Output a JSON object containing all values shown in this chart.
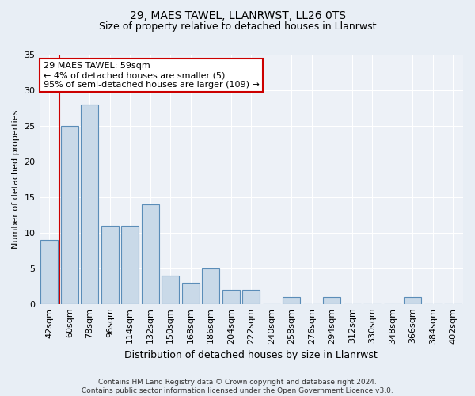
{
  "title1": "29, MAES TAWEL, LLANRWST, LL26 0TS",
  "title2": "Size of property relative to detached houses in Llanrwst",
  "xlabel": "Distribution of detached houses by size in Llanrwst",
  "ylabel": "Number of detached properties",
  "categories": [
    "42sqm",
    "60sqm",
    "78sqm",
    "96sqm",
    "114sqm",
    "132sqm",
    "150sqm",
    "168sqm",
    "186sqm",
    "204sqm",
    "222sqm",
    "240sqm",
    "258sqm",
    "276sqm",
    "294sqm",
    "312sqm",
    "330sqm",
    "348sqm",
    "366sqm",
    "384sqm",
    "402sqm"
  ],
  "values": [
    9,
    25,
    28,
    11,
    11,
    14,
    4,
    3,
    5,
    2,
    2,
    0,
    1,
    0,
    1,
    0,
    0,
    0,
    1,
    0,
    0
  ],
  "bar_color": "#c9d9e8",
  "bar_edge_color": "#5b8db8",
  "highlight_index": 1,
  "highlight_color": "#cc0000",
  "ylim": [
    0,
    35
  ],
  "yticks": [
    0,
    5,
    10,
    15,
    20,
    25,
    30,
    35
  ],
  "annotation_text": "29 MAES TAWEL: 59sqm\n← 4% of detached houses are smaller (5)\n95% of semi-detached houses are larger (109) →",
  "footer": "Contains HM Land Registry data © Crown copyright and database right 2024.\nContains public sector information licensed under the Open Government Licence v3.0.",
  "bg_color": "#e8eef5",
  "plot_bg_color": "#edf1f7",
  "grid_color": "#ffffff",
  "title1_fontsize": 10,
  "title2_fontsize": 9,
  "xlabel_fontsize": 9,
  "ylabel_fontsize": 8,
  "tick_fontsize": 8,
  "annot_fontsize": 8,
  "footer_fontsize": 6.5
}
